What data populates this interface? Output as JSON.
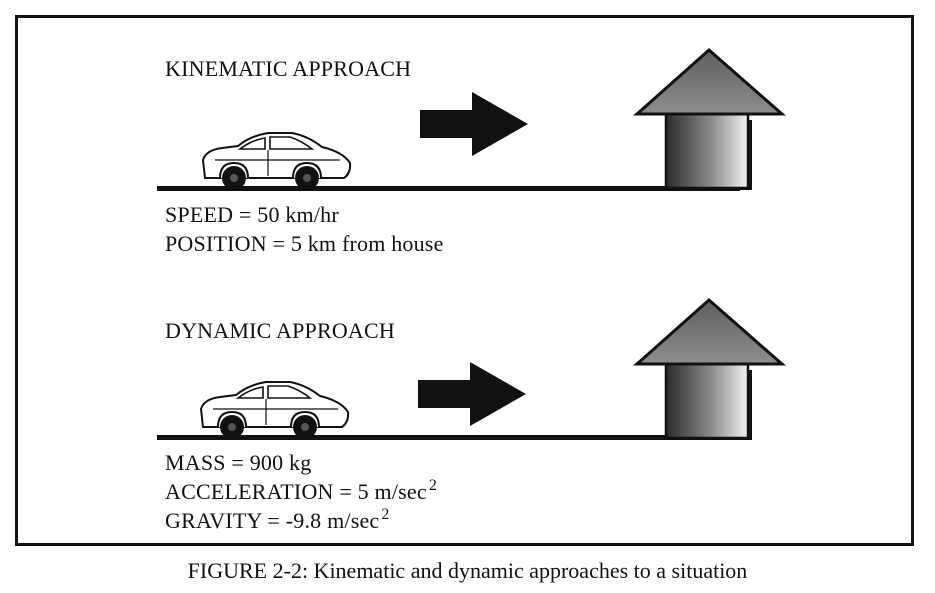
{
  "kinematic": {
    "title": "KINEMATIC APPROACH",
    "lines": [
      {
        "text": "SPEED = 50 km/hr",
        "sup": ""
      },
      {
        "text": "POSITION = 5 km from house",
        "sup": ""
      }
    ]
  },
  "dynamic": {
    "title": "DYNAMIC APPROACH",
    "lines": [
      {
        "text": "MASS = 900 kg",
        "sup": ""
      },
      {
        "text": "ACCELERATION = 5 m/sec",
        "sup": "2"
      },
      {
        "text": "GRAVITY = -9.8 m/sec",
        "sup": "2"
      }
    ]
  },
  "caption": "FIGURE 2-2: Kinematic and dynamic approaches to a situation",
  "colors": {
    "ink": "#111111",
    "roof": "#7a7a7a",
    "wall_dark": "#2b2b2b",
    "wall_light": "#f2f2f2"
  },
  "icons": [
    "car-icon",
    "arrow-right-icon",
    "house-icon"
  ]
}
